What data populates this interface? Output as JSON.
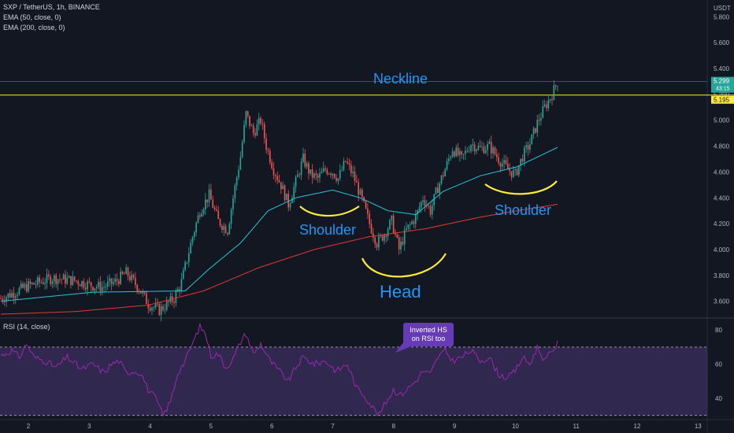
{
  "header": {
    "symbol_line": "SXP / TetherUS, 1h, BINANCE",
    "ema50_line": "EMA (50, close, 0)",
    "ema200_line": "EMA (200, close, 0)",
    "currency": "USDT"
  },
  "rsi_panel": {
    "label": "RSI (14, close)",
    "callout": [
      "Inverted HS",
      "on RSI too"
    ]
  },
  "annotations": {
    "neckline": "Neckline",
    "left_shoulder": "Shoulder",
    "head": "Head",
    "right_shoulder": "Shoulder"
  },
  "price_labels": {
    "last": "5.299",
    "countdown": "43:15",
    "line": "5.195"
  },
  "colors": {
    "up": "#26a69a",
    "down": "#ef5350",
    "ema50": "#26c6da",
    "ema200": "#e53935",
    "rsi": "#9c27b0",
    "rsi_band": "#7e57c2",
    "neckline_line": "#ffeb3b",
    "curve": "#ffeb3b",
    "annotation_text": "#2196f3",
    "callout_bg": "#673ab7"
  },
  "chart_data": [
    {
      "type": "candlestick",
      "name": "SXP/USDT 1h",
      "x_ticks": [
        "2",
        "3",
        "4",
        "5",
        "6",
        "7",
        "8",
        "9",
        "10",
        "11",
        "12",
        "13"
      ],
      "y_ticks": [
        "3.600",
        "3.800",
        "4.000",
        "4.200",
        "4.400",
        "4.600",
        "4.800",
        "5.000",
        "5.200",
        "5.400",
        "5.600",
        "5.800"
      ],
      "ylim": [
        3.47,
        5.93
      ],
      "horizontal_lines": [
        5.195,
        5.299
      ],
      "waypoints": [
        [
          0,
          3.62
        ],
        [
          15,
          3.72
        ],
        [
          28,
          3.78
        ],
        [
          40,
          3.76
        ],
        [
          50,
          3.72
        ],
        [
          55,
          3.71
        ],
        [
          62,
          3.75
        ],
        [
          68,
          3.82
        ],
        [
          75,
          3.7
        ],
        [
          80,
          3.58
        ],
        [
          86,
          3.53
        ],
        [
          94,
          3.62
        ],
        [
          98,
          3.75
        ],
        [
          104,
          4.1
        ],
        [
          108,
          4.3
        ],
        [
          113,
          4.42
        ],
        [
          118,
          4.22
        ],
        [
          123,
          4.15
        ],
        [
          126,
          4.4
        ],
        [
          130,
          4.72
        ],
        [
          133,
          5.05
        ],
        [
          137,
          4.9
        ],
        [
          141,
          5.0
        ],
        [
          144,
          4.8
        ],
        [
          148,
          4.62
        ],
        [
          152,
          4.5
        ],
        [
          156,
          4.35
        ],
        [
          160,
          4.52
        ],
        [
          164,
          4.7
        ],
        [
          168,
          4.58
        ],
        [
          172,
          4.55
        ],
        [
          176,
          4.62
        ],
        [
          180,
          4.6
        ],
        [
          183,
          4.55
        ],
        [
          187,
          4.68
        ],
        [
          191,
          4.58
        ],
        [
          196,
          4.38
        ],
        [
          200,
          4.2
        ],
        [
          204,
          4.05
        ],
        [
          208,
          4.12
        ],
        [
          212,
          4.22
        ],
        [
          216,
          4.0
        ],
        [
          220,
          4.15
        ],
        [
          225,
          4.25
        ],
        [
          229,
          4.4
        ],
        [
          233,
          4.3
        ],
        [
          237,
          4.48
        ],
        [
          241,
          4.62
        ],
        [
          245,
          4.78
        ],
        [
          250,
          4.7
        ],
        [
          255,
          4.82
        ],
        [
          260,
          4.78
        ],
        [
          265,
          4.8
        ],
        [
          270,
          4.7
        ],
        [
          275,
          4.62
        ],
        [
          279,
          4.58
        ],
        [
          283,
          4.72
        ],
        [
          287,
          4.82
        ],
        [
          291,
          4.98
        ],
        [
          295,
          5.1
        ],
        [
          299,
          5.2
        ],
        [
          302,
          5.3
        ]
      ],
      "ema50_waypoints": [
        [
          0,
          3.6
        ],
        [
          50,
          3.67
        ],
        [
          100,
          3.68
        ],
        [
          113,
          3.85
        ],
        [
          130,
          4.05
        ],
        [
          145,
          4.3
        ],
        [
          160,
          4.4
        ],
        [
          180,
          4.46
        ],
        [
          195,
          4.4
        ],
        [
          210,
          4.3
        ],
        [
          225,
          4.27
        ],
        [
          240,
          4.45
        ],
        [
          260,
          4.57
        ],
        [
          280,
          4.64
        ],
        [
          302,
          4.79
        ]
      ],
      "ema200_waypoints": [
        [
          0,
          3.5
        ],
        [
          40,
          3.52
        ],
        [
          80,
          3.57
        ],
        [
          110,
          3.68
        ],
        [
          140,
          3.86
        ],
        [
          170,
          4.0
        ],
        [
          200,
          4.1
        ],
        [
          230,
          4.16
        ],
        [
          260,
          4.25
        ],
        [
          280,
          4.3
        ],
        [
          302,
          4.35
        ]
      ]
    },
    {
      "type": "line",
      "name": "RSI (14, close)",
      "y_ticks": [
        "40",
        "60",
        "80"
      ],
      "ylim": [
        28,
        87
      ],
      "bands": [
        70,
        30
      ],
      "waypoints": [
        [
          0,
          65
        ],
        [
          6,
          68
        ],
        [
          10,
          64
        ],
        [
          14,
          72
        ],
        [
          18,
          64
        ],
        [
          24,
          62
        ],
        [
          30,
          58
        ],
        [
          36,
          64
        ],
        [
          44,
          57
        ],
        [
          50,
          60
        ],
        [
          56,
          55
        ],
        [
          60,
          60
        ],
        [
          64,
          62
        ],
        [
          68,
          55
        ],
        [
          72,
          56
        ],
        [
          76,
          55
        ],
        [
          80,
          45
        ],
        [
          84,
          40
        ],
        [
          88,
          30
        ],
        [
          92,
          38
        ],
        [
          96,
          55
        ],
        [
          100,
          62
        ],
        [
          104,
          72
        ],
        [
          108,
          82
        ],
        [
          111,
          78
        ],
        [
          114,
          65
        ],
        [
          118,
          66
        ],
        [
          122,
          58
        ],
        [
          126,
          63
        ],
        [
          130,
          73
        ],
        [
          133,
          78
        ],
        [
          137,
          66
        ],
        [
          141,
          72
        ],
        [
          146,
          62
        ],
        [
          151,
          56
        ],
        [
          156,
          50
        ],
        [
          160,
          58
        ],
        [
          164,
          64
        ],
        [
          170,
          60
        ],
        [
          176,
          62
        ],
        [
          182,
          56
        ],
        [
          188,
          60
        ],
        [
          193,
          46
        ],
        [
          197,
          42
        ],
        [
          201,
          36
        ],
        [
          205,
          30
        ],
        [
          209,
          38
        ],
        [
          213,
          45
        ],
        [
          217,
          42
        ],
        [
          221,
          46
        ],
        [
          225,
          50
        ],
        [
          229,
          56
        ],
        [
          233,
          54
        ],
        [
          237,
          64
        ],
        [
          241,
          68
        ],
        [
          245,
          62
        ],
        [
          250,
          64
        ],
        [
          255,
          68
        ],
        [
          260,
          62
        ],
        [
          265,
          64
        ],
        [
          270,
          54
        ],
        [
          275,
          52
        ],
        [
          279,
          56
        ],
        [
          283,
          64
        ],
        [
          287,
          60
        ],
        [
          291,
          70
        ],
        [
          295,
          62
        ],
        [
          299,
          68
        ],
        [
          302,
          72
        ]
      ]
    }
  ]
}
